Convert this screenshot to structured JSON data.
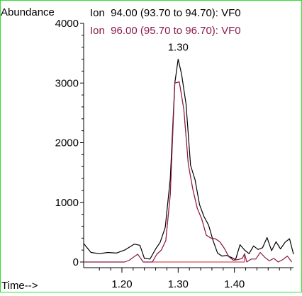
{
  "colors": {
    "frame_border": "#33dd33",
    "series_black": "#000000",
    "series_maroon": "#8b1a4a",
    "area_fill": "#cc2233"
  },
  "labels": {
    "y_axis_title": "Abundance",
    "x_axis_title": "Time-->",
    "peak_label": "1.30"
  },
  "chart_data": {
    "type": "line",
    "title": "",
    "xlabel": "Time-->",
    "ylabel": "Abundance",
    "xlim": [
      1.132,
      1.505
    ],
    "ylim": [
      0,
      4000
    ],
    "x_ticks": [
      1.2,
      1.3,
      1.4
    ],
    "x_tick_labels": [
      "1.20",
      "1.30",
      "1.40"
    ],
    "y_ticks": [
      0,
      1000,
      2000,
      3000,
      4000
    ],
    "y_tick_labels": [
      "0",
      "1000",
      "2000",
      "3000",
      "4000"
    ],
    "grid": false,
    "legend_placement": "top",
    "series": [
      {
        "name": "Ion  94.00 (93.70 to 94.70): VF0",
        "color": "#000000",
        "x": [
          1.132,
          1.145,
          1.16,
          1.175,
          1.19,
          1.205,
          1.222,
          1.232,
          1.24,
          1.25,
          1.26,
          1.268,
          1.277,
          1.286,
          1.294,
          1.3,
          1.306,
          1.314,
          1.322,
          1.33,
          1.338,
          1.346,
          1.354,
          1.362,
          1.37,
          1.378,
          1.386,
          1.394,
          1.402,
          1.41,
          1.418,
          1.426,
          1.434,
          1.442,
          1.45,
          1.458,
          1.466,
          1.474,
          1.482,
          1.49,
          1.498,
          1.505
        ],
        "y": [
          310,
          160,
          140,
          160,
          150,
          200,
          300,
          280,
          60,
          50,
          220,
          330,
          580,
          1400,
          3000,
          3400,
          3150,
          2650,
          1620,
          1380,
          960,
          760,
          620,
          360,
          150,
          100,
          110,
          80,
          40,
          290,
          200,
          140,
          270,
          210,
          240,
          410,
          190,
          340,
          220,
          330,
          390,
          130
        ]
      },
      {
        "name": "Ion  96.00 (95.70 to 96.70): VF0",
        "color": "#8b1a4a",
        "x": [
          1.132,
          1.19,
          1.205,
          1.213,
          1.228,
          1.238,
          1.254,
          1.262,
          1.27,
          1.278,
          1.286,
          1.294,
          1.302,
          1.31,
          1.318,
          1.326,
          1.334,
          1.342,
          1.35,
          1.358,
          1.366,
          1.374,
          1.382,
          1.39,
          1.398,
          1.406,
          1.414,
          1.418,
          1.422,
          1.43,
          1.438,
          1.446,
          1.454,
          1.462,
          1.47,
          1.478,
          1.486,
          1.494,
          1.502
        ],
        "y": [
          0,
          0,
          0,
          30,
          130,
          0,
          0,
          130,
          200,
          360,
          1130,
          3000,
          3020,
          2560,
          1640,
          1220,
          900,
          720,
          450,
          400,
          390,
          340,
          230,
          90,
          30,
          40,
          60,
          140,
          0,
          50,
          50,
          160,
          80,
          20,
          60,
          0,
          40,
          100,
          0
        ]
      }
    ],
    "annotations": [
      {
        "text": "1.30",
        "x": 1.3,
        "y": 3400
      }
    ]
  }
}
